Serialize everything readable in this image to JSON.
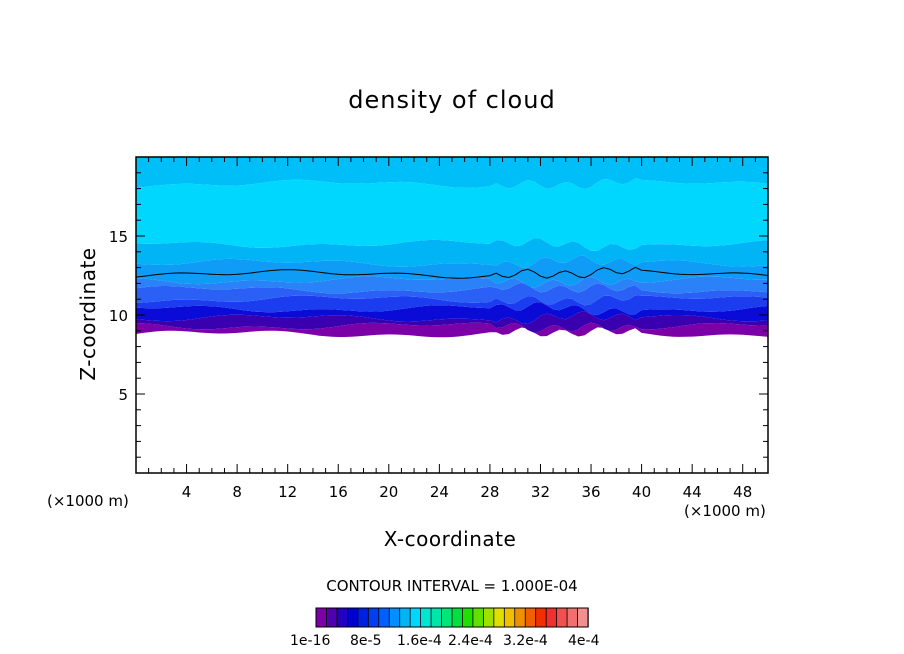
{
  "chart_data": {
    "type": "contour",
    "title": "density of cloud",
    "xlabel": "X-coordinate",
    "ylabel": "Z-coordinate",
    "x_unit_left": "(×1000 m)",
    "x_unit_right": "(×1000 m)",
    "xlim": [
      0,
      50
    ],
    "ylim": [
      0,
      20
    ],
    "x_ticks": [
      4,
      8,
      12,
      16,
      20,
      24,
      28,
      32,
      36,
      40,
      44,
      48
    ],
    "y_ticks": [
      5,
      10,
      15
    ],
    "contour_interval_text": "CONTOUR INTERVAL = 1.000E-04",
    "contour_line_z": 12.6,
    "layers": [
      {
        "z_bottom": 8.8,
        "z_top": 9.3,
        "color": "#7b00a8"
      },
      {
        "z_bottom": 9.3,
        "z_top": 9.8,
        "color": "#3a00b0"
      },
      {
        "z_bottom": 9.8,
        "z_top": 10.4,
        "color": "#0b0bd8"
      },
      {
        "z_bottom": 10.4,
        "z_top": 11.0,
        "color": "#1c3cf0"
      },
      {
        "z_bottom": 11.0,
        "z_top": 11.6,
        "color": "#2a60f5"
      },
      {
        "z_bottom": 11.6,
        "z_top": 12.2,
        "color": "#2b82f8"
      },
      {
        "z_bottom": 12.2,
        "z_top": 13.3,
        "color": "#0f9cf6"
      },
      {
        "z_bottom": 13.3,
        "z_top": 14.5,
        "color": "#00b4f5"
      },
      {
        "z_bottom": 14.5,
        "z_top": 18.3,
        "color": "#00d7ff"
      },
      {
        "z_bottom": 18.3,
        "z_top": 20.0,
        "color": "#00bff8"
      }
    ],
    "colorbar": {
      "colors": [
        "#7b00a8",
        "#5000b0",
        "#2400c0",
        "#0000cc",
        "#0020e0",
        "#0040f0",
        "#0060ff",
        "#0090ff",
        "#00b4f5",
        "#00d7ff",
        "#00e6d0",
        "#00e6a8",
        "#00e678",
        "#00e040",
        "#20e000",
        "#60e000",
        "#a0e000",
        "#e0e000",
        "#f0c000",
        "#f09000",
        "#f06000",
        "#f03000",
        "#f03030",
        "#f05050",
        "#f07070",
        "#f09090"
      ],
      "labels": [
        "1e-16",
        "8e-5",
        "1.6e-4",
        "2.4e-4",
        "3.2e-4",
        "4e-4"
      ]
    }
  }
}
